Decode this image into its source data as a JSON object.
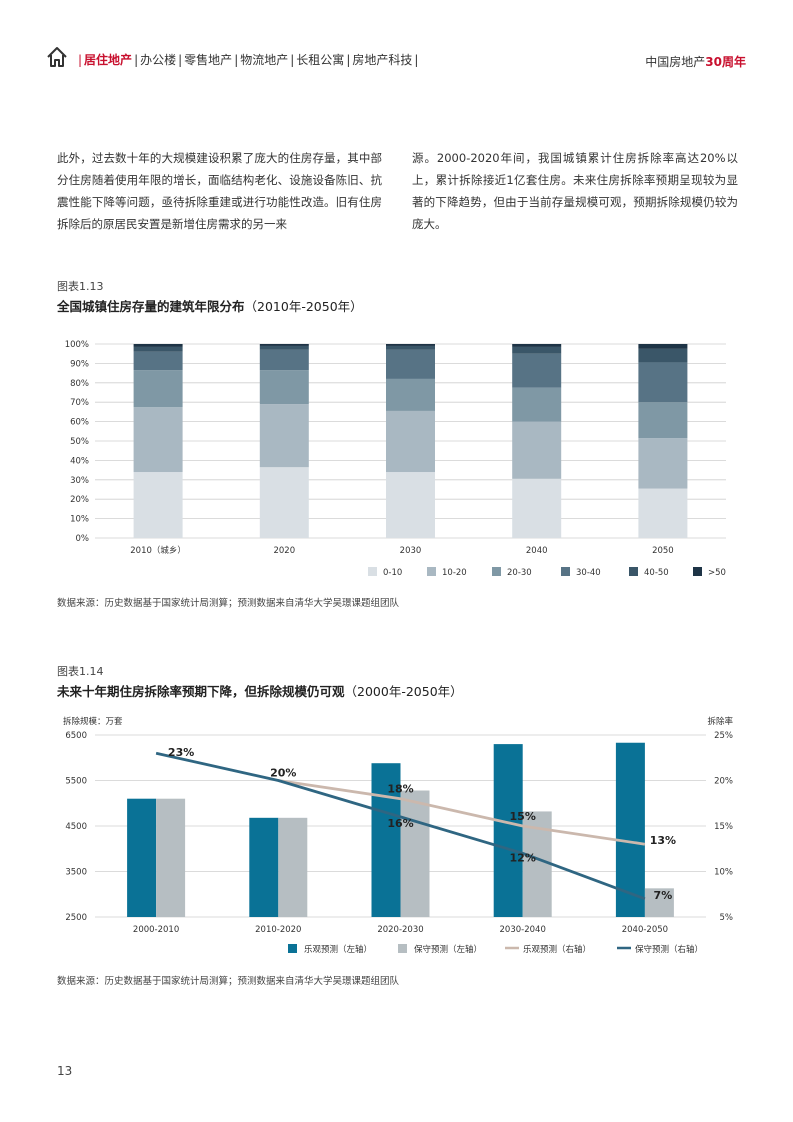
{
  "header": {
    "nav_active": "居住地产",
    "nav_items": [
      "办公楼",
      "零售地产",
      "物流地产",
      "长租公寓",
      "房地产科技"
    ],
    "anniv_prefix": "中国房地产",
    "anniv_highlight": "30周年",
    "accent_color": "#c8102e"
  },
  "body": {
    "left_text": "此外，过去数十年的大规模建设积累了庞大的住房存量，其中部分住房随着使用年限的增长，面临结构老化、设施设备陈旧、抗震性能下降等问题，亟待拆除重建或进行功能性改造。旧有住房拆除后的原居民安置是新增住房需求的另一来",
    "right_text": "源。2000-2020年间，我国城镇累计住房拆除率高达20%以上，累计拆除接近1亿套住房。未来住房拆除率预期呈现较为显著的下降趋势，但由于当前存量规模可观，预期拆除规模仍较为庞大。"
  },
  "figure1": {
    "label": "图表1.13",
    "title_bold": "全国城镇住房存量的建筑年限分布",
    "title_normal": "（2010年-2050年）",
    "source": "数据来源：历史数据基于国家统计局测算；预测数据来自清华大学吴璟课题组团队"
  },
  "figure2": {
    "label": "图表1.14",
    "title_bold": "未来十年期住房拆除率预期下降，但拆除规模仍可观",
    "title_normal": "（2000年-2050年）",
    "source": "数据来源：历史数据基于国家统计局测算；预测数据来自清华大学吴璟课题组团队"
  },
  "page_number": "13",
  "chart_data": [
    {
      "type": "bar",
      "stacked": true,
      "percent": true,
      "categories": [
        "2010（城乡）",
        "2020",
        "2030",
        "2040",
        "2050"
      ],
      "y_ticks": [
        "0%",
        "10%",
        "20%",
        "30%",
        "40%",
        "50%",
        "60%",
        "70%",
        "80%",
        "90%",
        "100%"
      ],
      "ylim": [
        0,
        100
      ],
      "legend_position": "bottom-right",
      "series": [
        {
          "name": "0-10",
          "color": "#d9dfe4",
          "values": [
            34,
            36.5,
            34,
            30.5,
            25.5
          ]
        },
        {
          "name": "10-20",
          "color": "#a9b8c2",
          "values": [
            33.5,
            32.5,
            31.5,
            29.5,
            26
          ]
        },
        {
          "name": "20-30",
          "color": "#7f98a5",
          "values": [
            19,
            17.5,
            16.5,
            17.5,
            18.5
          ]
        },
        {
          "name": "30-40",
          "color": "#577385",
          "values": [
            9.5,
            10.5,
            15,
            17.5,
            20.5
          ]
        },
        {
          "name": "40-50",
          "color": "#3a5668",
          "values": [
            2.5,
            2,
            2,
            3.5,
            7
          ]
        },
        {
          "name": ">50",
          "color": "#1e3446",
          "values": [
            1.5,
            1,
            1,
            1.5,
            2.5
          ]
        }
      ]
    },
    {
      "type": "bar",
      "categories": [
        "2000-2010",
        "2010-2020",
        "2020-2030",
        "2030-2040",
        "2040-2050"
      ],
      "y_left_label": "拆除规模：万套",
      "y_right_label": "拆除率",
      "y_left_ticks": [
        "2500",
        "3500",
        "4500",
        "5500",
        "6500"
      ],
      "y_right_ticks": [
        "5%",
        "10%",
        "15%",
        "20%",
        "25%"
      ],
      "ylim_left": [
        2500,
        6500
      ],
      "ylim_right": [
        5,
        25
      ],
      "legend_position": "bottom-right",
      "series": [
        {
          "name": "乐观预测（左轴）",
          "type": "bar",
          "axis": "left",
          "color": "#0a7296",
          "values": [
            5100,
            4680,
            5880,
            6300,
            6330
          ]
        },
        {
          "name": "保守预测（左轴）",
          "type": "bar",
          "axis": "left",
          "color": "#b6bec2",
          "values": [
            5100,
            4680,
            5280,
            4820,
            3130
          ]
        },
        {
          "name": "乐观预测（右轴）",
          "type": "line",
          "axis": "right",
          "color": "#cbb8ad",
          "values": [
            null,
            20,
            18,
            15,
            13
          ],
          "labels": [
            "",
            "",
            "18%",
            "15%",
            "13%"
          ]
        },
        {
          "name": "保守预测（右轴）",
          "type": "line",
          "axis": "right",
          "color": "#2f6682",
          "values": [
            23,
            20,
            16,
            12,
            7
          ],
          "labels": [
            "23%",
            "20%",
            "16%",
            "12%",
            "7%"
          ]
        }
      ]
    }
  ]
}
